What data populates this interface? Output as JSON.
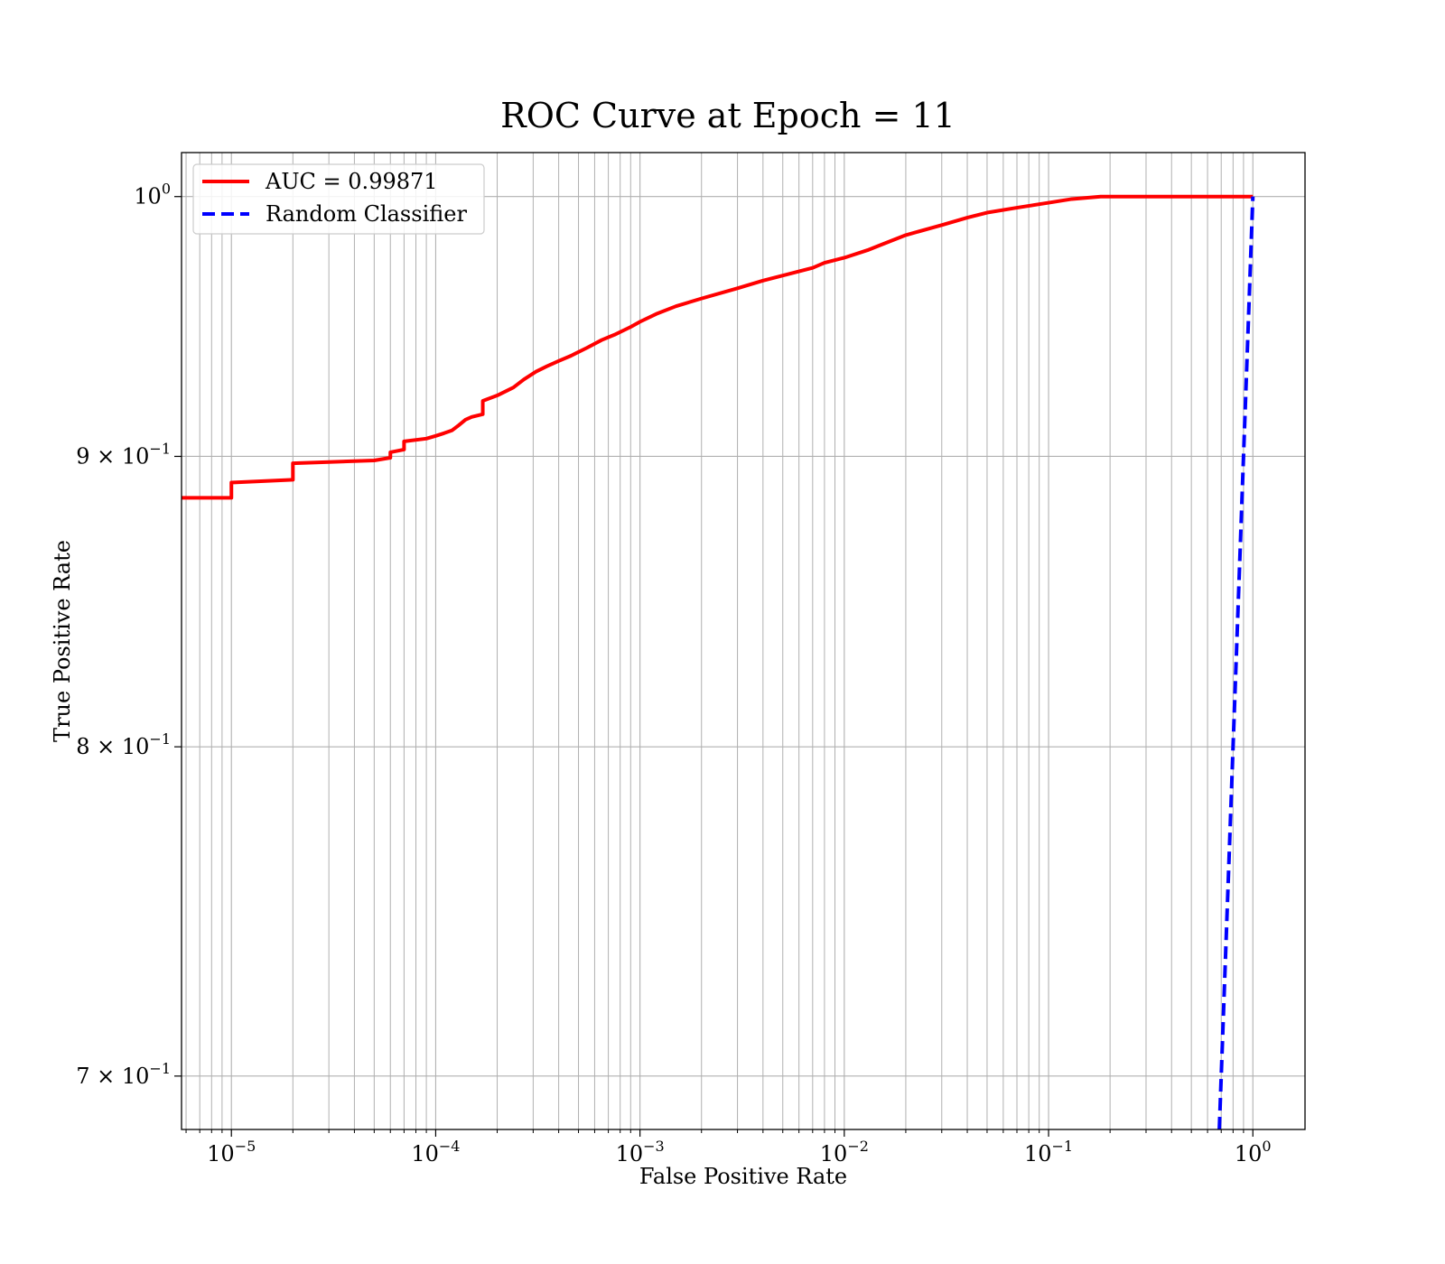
{
  "chart_data": {
    "type": "line",
    "title": "ROC Curve at Epoch = 11",
    "xlabel": "False Positive Rate",
    "ylabel": "True Positive Rate",
    "xscale": "log",
    "yscale": "log",
    "xlim": [
      5.7e-06,
      1.8
    ],
    "ylim": [
      0.685,
      1.018
    ],
    "grid": true,
    "grid_which": "both",
    "legend_position": "upper-left",
    "x_ticks": [
      {
        "value": 1e-05,
        "base": "10",
        "exp": "−5"
      },
      {
        "value": 0.0001,
        "base": "10",
        "exp": "−4"
      },
      {
        "value": 0.001,
        "base": "10",
        "exp": "−3"
      },
      {
        "value": 0.01,
        "base": "10",
        "exp": "−2"
      },
      {
        "value": 0.1,
        "base": "10",
        "exp": "−1"
      },
      {
        "value": 1,
        "base": "10",
        "exp": "0"
      }
    ],
    "y_ticks": [
      {
        "value": 0.7,
        "base": "7 × 10",
        "exp": "−1"
      },
      {
        "value": 0.8,
        "base": "8 × 10",
        "exp": "−1"
      },
      {
        "value": 0.9,
        "base": "9 × 10",
        "exp": "−1"
      },
      {
        "value": 1.0,
        "base": "10",
        "exp": "0"
      }
    ],
    "series": [
      {
        "name": "AUC = 0.99871",
        "color": "#ff0000",
        "style": "solid",
        "x": [
          5.7e-06,
          1e-05,
          1e-05,
          2e-05,
          2e-05,
          5e-05,
          6e-05,
          6e-05,
          7e-05,
          7e-05,
          9e-05,
          0.0001,
          0.00011,
          0.00012,
          0.00013,
          0.00014,
          0.00015,
          0.00017,
          0.00017,
          0.0002,
          0.00024,
          0.00027,
          0.00031,
          0.00035,
          0.0004,
          0.00046,
          0.00055,
          0.00065,
          0.00075,
          0.0009,
          0.001,
          0.0012,
          0.0015,
          0.002,
          0.003,
          0.004,
          0.005,
          0.007,
          0.008,
          0.01,
          0.013,
          0.015,
          0.02,
          0.03,
          0.04,
          0.05,
          0.07,
          0.1,
          0.13,
          0.18,
          0.25,
          0.4,
          0.6,
          1.0
        ],
        "y": [
          0.885,
          0.885,
          0.8905,
          0.8915,
          0.8975,
          0.8985,
          0.8995,
          0.9015,
          0.9025,
          0.9055,
          0.9065,
          0.9075,
          0.9085,
          0.9095,
          0.9115,
          0.9135,
          0.9145,
          0.9155,
          0.9205,
          0.9225,
          0.9255,
          0.9285,
          0.9315,
          0.9335,
          0.9355,
          0.9375,
          0.9405,
          0.9435,
          0.9455,
          0.9485,
          0.9505,
          0.9535,
          0.9565,
          0.9595,
          0.9635,
          0.9665,
          0.9685,
          0.9715,
          0.9735,
          0.9755,
          0.9785,
          0.9805,
          0.9845,
          0.9885,
          0.9915,
          0.9935,
          0.9955,
          0.9975,
          0.999,
          1.0,
          1.0,
          1.0,
          1.0,
          1.0
        ]
      },
      {
        "name": "Random Classifier",
        "color": "#0000ff",
        "style": "dashed",
        "x": [
          0.685,
          0.7,
          0.8,
          0.9,
          1.0
        ],
        "y": [
          0.685,
          0.7,
          0.8,
          0.9,
          1.0
        ]
      }
    ]
  }
}
